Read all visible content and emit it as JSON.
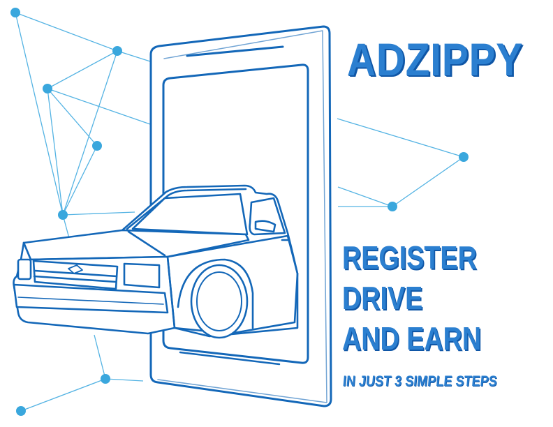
{
  "brand": {
    "name": "ADZIPPY"
  },
  "steps": [
    "REGISTER",
    "DRIVE",
    "AND EARN"
  ],
  "tagline": "IN JUST 3 SIMPLE STEPS",
  "colors": {
    "accent": "#2b7fd0",
    "dark": "#0f56a6",
    "network": "#3aa7dd"
  }
}
